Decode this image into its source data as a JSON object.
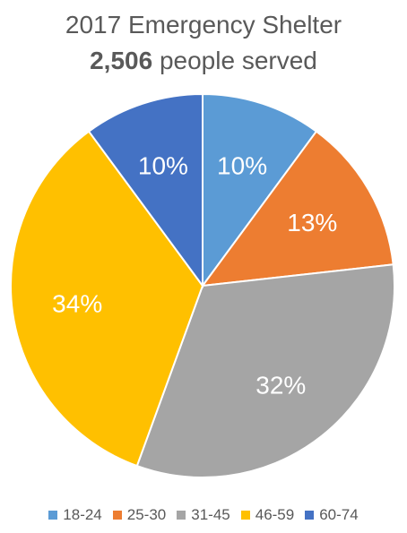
{
  "title": {
    "line1": "2017 Emergency Shelter",
    "count": "2,506",
    "suffix": " people served"
  },
  "chart_data": {
    "type": "pie",
    "title": "2017 Emergency Shelter",
    "subtitle": "2,506 people served",
    "categories": [
      "18-24",
      "25-30",
      "31-45",
      "46-59",
      "60-74"
    ],
    "values": [
      10,
      13,
      32,
      34,
      10
    ],
    "data_labels": [
      "10%",
      "13%",
      "32%",
      "34%",
      "10%"
    ],
    "colors": [
      "#5B9BD5",
      "#ED7D31",
      "#A5A5A5",
      "#FFC000",
      "#4472C4"
    ],
    "legend_position": "bottom"
  }
}
